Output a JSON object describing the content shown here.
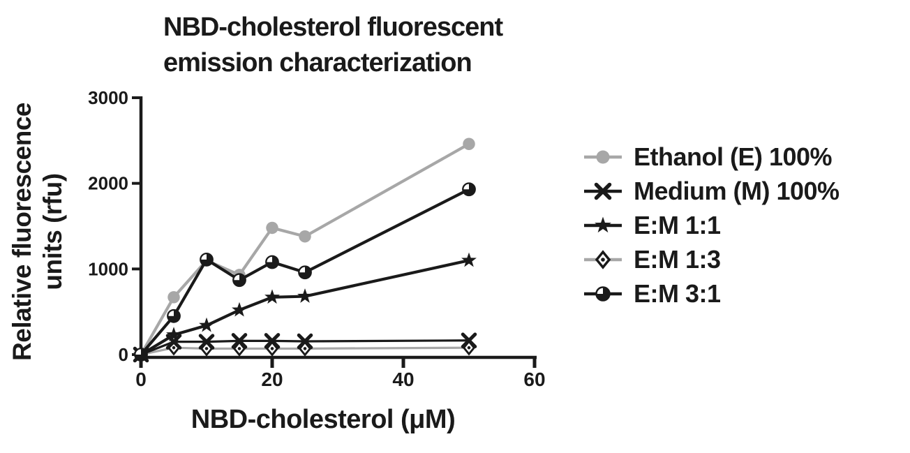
{
  "title": {
    "line1": "NBD-cholesterol fluorescent",
    "line2": "emission characterization"
  },
  "axes": {
    "y_label_line1": "Relative fluorescence",
    "y_label_line2": "units (rfu)",
    "x_label": "NBD-cholesterol (μM)"
  },
  "colors": {
    "black": "#1a1a1a",
    "gray": "#a7a7a7",
    "background": "#ffffff"
  },
  "chart_data": {
    "type": "line",
    "title": "NBD-cholesterol fluorescent emission characterization",
    "xlabel": "NBD-cholesterol (μM)",
    "ylabel": "Relative fluorescence units (rfu)",
    "xlim": [
      0,
      60
    ],
    "ylim": [
      0,
      3000
    ],
    "x_ticks": [
      0,
      20,
      40,
      60
    ],
    "y_ticks": [
      0,
      1000,
      2000,
      3000
    ],
    "grid": false,
    "legend_position": "right",
    "x": [
      0,
      5,
      10,
      15,
      20,
      25,
      50
    ],
    "series": [
      {
        "name": "Ethanol (E) 100%",
        "marker": "circle-filled",
        "color": "#a7a7a7",
        "line_color": "#a7a7a7",
        "values": [
          0,
          670,
          1100,
          930,
          1480,
          1380,
          2460
        ]
      },
      {
        "name": "Medium (M) 100%",
        "marker": "x",
        "color": "#1a1a1a",
        "line_color": "#1a1a1a",
        "values": [
          0,
          150,
          150,
          160,
          160,
          155,
          165
        ]
      },
      {
        "name": "E:M 1:1",
        "marker": "star",
        "color": "#1a1a1a",
        "line_color": "#1a1a1a",
        "values": [
          0,
          230,
          340,
          520,
          670,
          680,
          1100
        ]
      },
      {
        "name": "E:M 1:3",
        "marker": "diamond-open",
        "color": "#1a1a1a",
        "line_color": "#a7a7a7",
        "values": [
          0,
          80,
          70,
          70,
          70,
          70,
          80
        ]
      },
      {
        "name": "E:M 3:1",
        "marker": "circle-half",
        "color": "#1a1a1a",
        "line_color": "#1a1a1a",
        "values": [
          0,
          450,
          1110,
          870,
          1080,
          960,
          1930
        ]
      }
    ],
    "draw_order": [
      0,
      3,
      1,
      2,
      4
    ]
  }
}
